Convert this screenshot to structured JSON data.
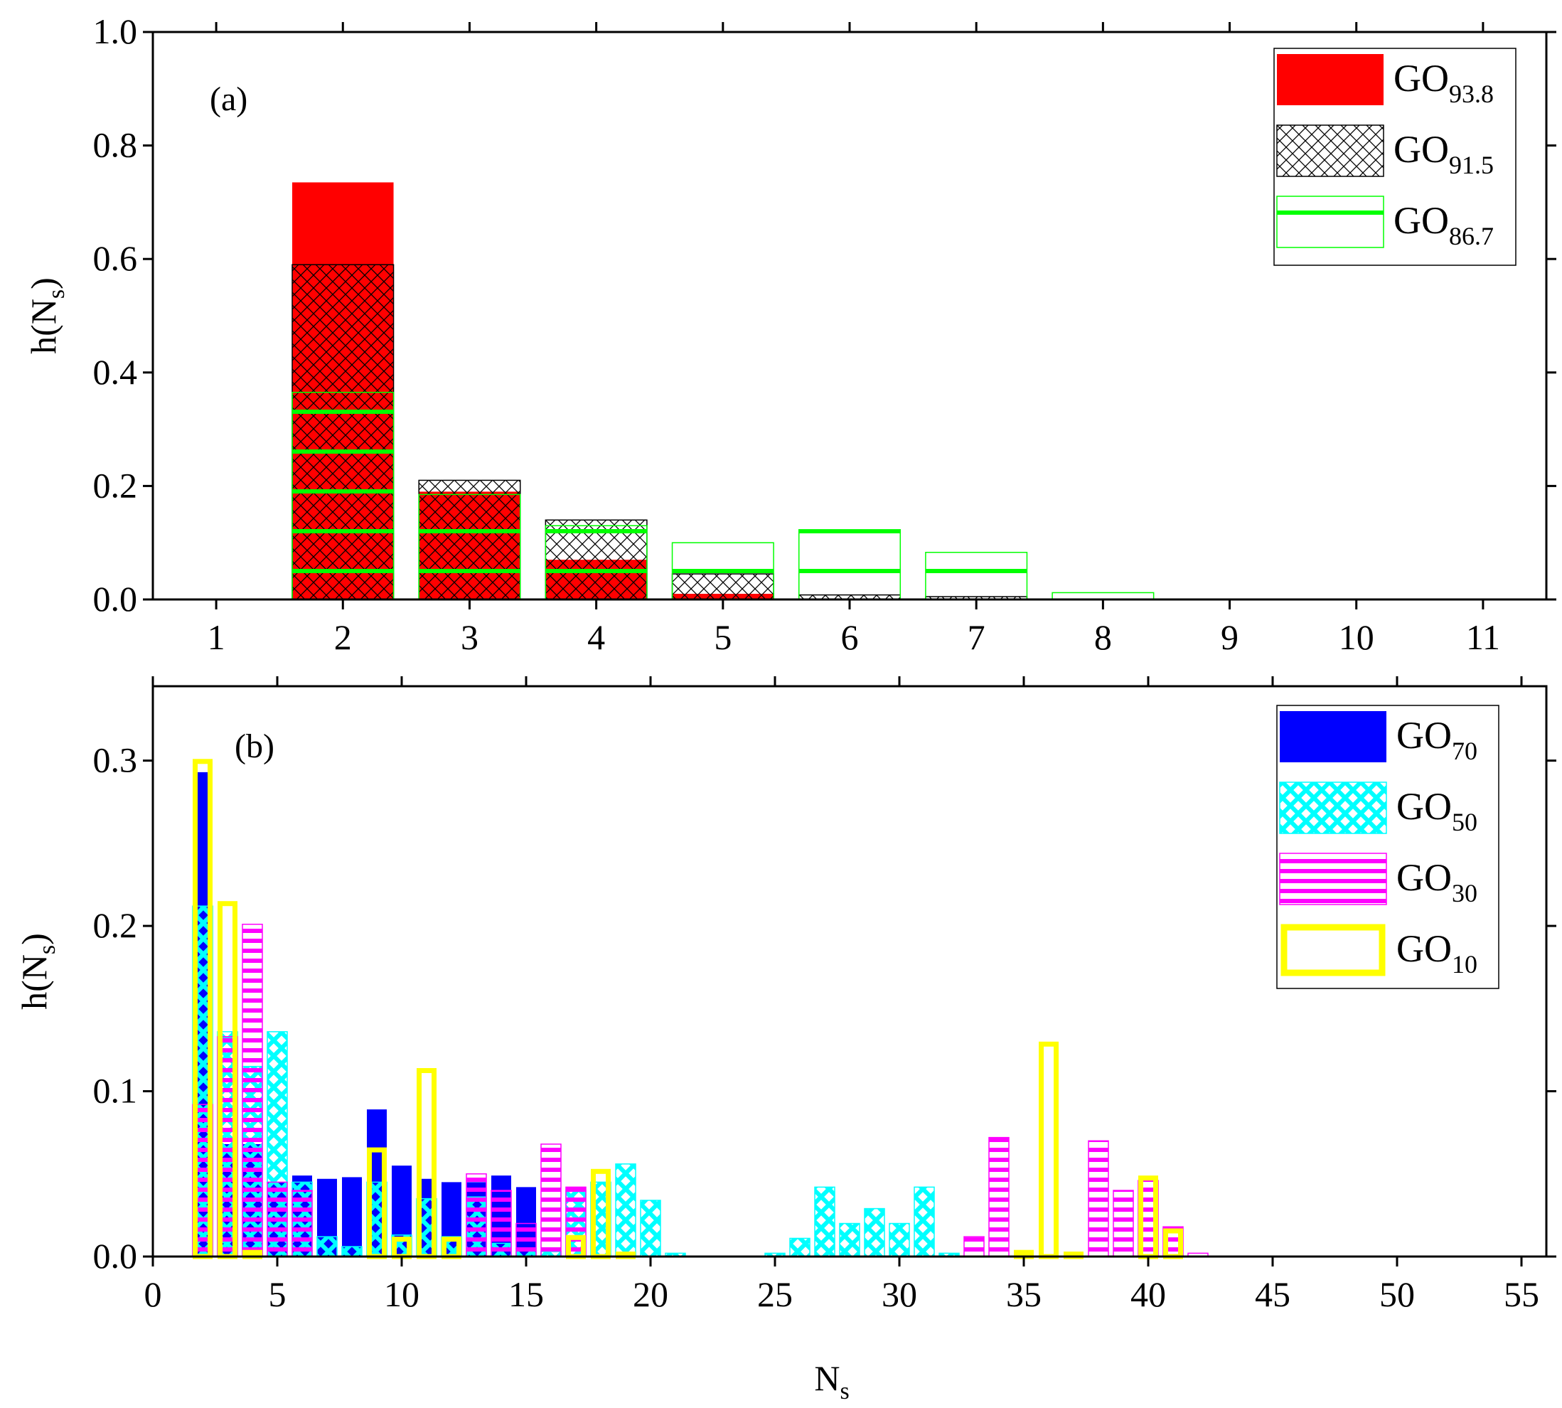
{
  "chart_data": [
    {
      "panel_label": "(a)",
      "type": "bar",
      "xlabel": "",
      "ylabel": "h(N",
      "ylabel_sub": "s",
      "ylabel_close": ")",
      "xlim": [
        0.5,
        11.5
      ],
      "ylim": [
        0,
        1.0
      ],
      "xticks": [
        1,
        2,
        3,
        4,
        5,
        6,
        7,
        8,
        9,
        10,
        11
      ],
      "yticks": [
        0.0,
        0.2,
        0.4,
        0.6,
        0.8,
        1.0
      ],
      "ytick_labels": [
        "0.0",
        "0.2",
        "0.4",
        "0.6",
        "0.8",
        "1.0"
      ],
      "bar_width": 0.8,
      "legend_position": "top-right",
      "series": [
        {
          "name": "GO",
          "subscript": "93.8",
          "style": "solid",
          "color": "#ff0000",
          "x": [
            2,
            3,
            4,
            5
          ],
          "values": [
            0.735,
            0.19,
            0.07,
            0.01
          ]
        },
        {
          "name": "GO",
          "subscript": "91.5",
          "style": "crosshatch",
          "color": "#000000",
          "x": [
            2,
            3,
            4,
            5,
            6,
            7
          ],
          "values": [
            0.59,
            0.21,
            0.14,
            0.045,
            0.008,
            0.005
          ]
        },
        {
          "name": "GO",
          "subscript": "86.7",
          "style": "horizontal-lines",
          "color": "#00ff00",
          "x": [
            2,
            3,
            4,
            5,
            6,
            7,
            8
          ],
          "values": [
            0.365,
            0.185,
            0.13,
            0.1,
            0.123,
            0.083,
            0.012
          ]
        }
      ]
    },
    {
      "panel_label": "(b)",
      "type": "bar",
      "xlabel": "N",
      "xlabel_sub": "s",
      "ylabel": "h(N",
      "ylabel_sub": "s",
      "ylabel_close": ")",
      "xlim": [
        0,
        56
      ],
      "ylim": [
        0,
        0.345
      ],
      "xticks": [
        0,
        5,
        10,
        15,
        20,
        25,
        30,
        35,
        40,
        45,
        50,
        55
      ],
      "yticks": [
        0.0,
        0.1,
        0.2,
        0.3
      ],
      "ytick_labels": [
        "0.0",
        "0.1",
        "0.2",
        "0.3"
      ],
      "bar_width": 0.8,
      "legend_position": "top-right",
      "series": [
        {
          "name": "GO",
          "subscript": "70",
          "style": "solid",
          "color": "#0000ff",
          "x": [
            2,
            3,
            4,
            5,
            6,
            7,
            8,
            9,
            10,
            11,
            12,
            13,
            14,
            15
          ],
          "values": [
            0.293,
            0.068,
            0.068,
            0.045,
            0.049,
            0.047,
            0.048,
            0.089,
            0.055,
            0.047,
            0.045,
            0.045,
            0.049,
            0.042
          ]
        },
        {
          "name": "GO",
          "subscript": "50",
          "style": "crosshatch",
          "color": "#00ffff",
          "x": [
            2,
            3,
            4,
            5,
            6,
            7,
            8,
            9,
            10,
            11,
            12,
            13,
            14,
            15,
            16,
            17,
            18,
            19,
            20,
            21,
            25,
            26,
            27,
            28,
            29,
            30,
            31,
            32
          ],
          "values": [
            0.212,
            0.136,
            0.115,
            0.136,
            0.045,
            0.012,
            0.006,
            0.045,
            0.013,
            0.035,
            0.012,
            0.036,
            0.008,
            0.005,
            0.003,
            0.04,
            0.045,
            0.056,
            0.034,
            0.002,
            0.002,
            0.011,
            0.042,
            0.02,
            0.029,
            0.02,
            0.042,
            0.002
          ]
        },
        {
          "name": "GO",
          "subscript": "30",
          "style": "horizontal-lines",
          "color": "#ff00ff",
          "x": [
            2,
            3,
            4,
            5,
            6,
            13,
            14,
            15,
            16,
            17,
            33,
            34,
            38,
            39,
            40,
            41,
            42
          ],
          "values": [
            0.092,
            0.133,
            0.201,
            0.045,
            0.04,
            0.05,
            0.04,
            0.02,
            0.068,
            0.042,
            0.012,
            0.072,
            0.07,
            0.04,
            0.046,
            0.018,
            0.002
          ]
        },
        {
          "name": "GO",
          "subscript": "10",
          "style": "outline",
          "color": "#ffff00",
          "x": [
            2,
            3,
            4,
            9,
            10,
            11,
            12,
            17,
            18,
            19,
            35,
            36,
            37,
            40,
            41
          ],
          "values": [
            0.301,
            0.215,
            0.004,
            0.066,
            0.012,
            0.114,
            0.012,
            0.013,
            0.053,
            0.003,
            0.004,
            0.13,
            0.003,
            0.049,
            0.017
          ]
        }
      ]
    }
  ]
}
